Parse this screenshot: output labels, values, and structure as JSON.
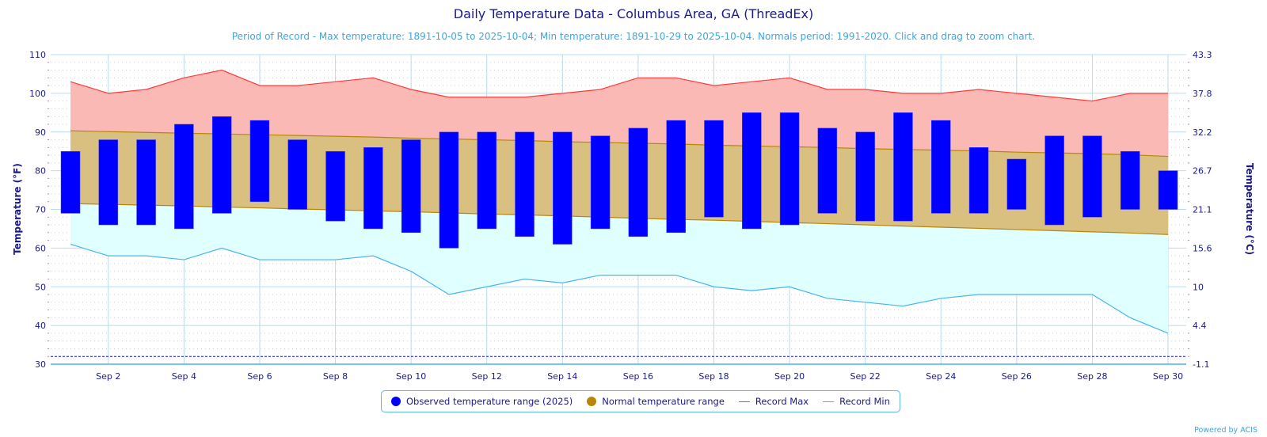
{
  "header": {
    "title": "Daily Temperature Data - Columbus Area, GA (ThreadEx)",
    "subtitle": "Period of Record - Max temperature: 1891-10-05 to 2025-10-04; Min temperature: 1891-10-29 to 2025-10-04. Normals period: 1991-2020. Click and drag to zoom chart."
  },
  "legend": {
    "items": [
      {
        "label": "Observed temperature range (2025)",
        "shape": "dot",
        "color": "#0000ff"
      },
      {
        "label": "Normal temperature range",
        "shape": "dot",
        "color": "#b8860b"
      },
      {
        "label": "Record Max",
        "shape": "line",
        "color": "#ff3b3b"
      },
      {
        "label": "Record Min",
        "shape": "line",
        "color": "#4ab4ee"
      }
    ]
  },
  "credit": "Powered by ACIS",
  "colors": {
    "observed": "#0000ff",
    "normal_fill": "#d9bf80",
    "normal_line": "#b8860b",
    "record_max_line": "#ff3b3b",
    "record_max_fill": "#fbb9b5",
    "record_min_line": "#4ab4ee",
    "record_min_fill": "#e0ffff",
    "freezing_line": "#1a1acc",
    "axis_text": "#1a1a8c",
    "grid": "#b8dcef"
  },
  "chart_data": {
    "type": "bar",
    "title": "Daily Temperature Data - Columbus Area, GA (ThreadEx)",
    "xlabel": "",
    "ylabel": "Temperature (°F)",
    "ylabel_right": "Temperature (°C)",
    "ylim": [
      30,
      110
    ],
    "yticks": [
      30,
      40,
      50,
      60,
      70,
      80,
      90,
      100,
      110
    ],
    "yticks_right": [
      "-1.1",
      "4.4",
      "10",
      "15.6",
      "21.1",
      "26.7",
      "32.2",
      "37.8",
      "43.3"
    ],
    "freezing_line": 32,
    "grid": true,
    "legend_position": "bottom-center",
    "days": [
      1,
      2,
      3,
      4,
      5,
      6,
      7,
      8,
      9,
      10,
      11,
      12,
      13,
      14,
      15,
      16,
      17,
      18,
      19,
      20,
      21,
      22,
      23,
      24,
      25,
      26,
      27,
      28,
      29,
      30
    ],
    "xtick_labels": [
      "Sep 2",
      "Sep 4",
      "Sep 6",
      "Sep 8",
      "Sep 10",
      "Sep 12",
      "Sep 14",
      "Sep 16",
      "Sep 18",
      "Sep 20",
      "Sep 22",
      "Sep 24",
      "Sep 26",
      "Sep 28",
      "Sep 30"
    ],
    "xtick_days": [
      2,
      4,
      6,
      8,
      10,
      12,
      14,
      16,
      18,
      20,
      22,
      24,
      26,
      28,
      30
    ],
    "series": [
      {
        "name": "Observed temperature range (2025) - max",
        "values": [
          85,
          88,
          88,
          92,
          94,
          93,
          88,
          85,
          86,
          88,
          90,
          90,
          90,
          90,
          89,
          91,
          93,
          93,
          95,
          95,
          91,
          90,
          95,
          93,
          86,
          83,
          89,
          89,
          85,
          80
        ]
      },
      {
        "name": "Observed temperature range (2025) - min",
        "values": [
          69,
          66,
          66,
          65,
          69,
          72,
          70,
          67,
          65,
          64,
          60,
          65,
          63,
          61,
          65,
          63,
          64,
          68,
          65,
          66,
          69,
          67,
          67,
          69,
          69,
          70,
          66,
          68,
          70,
          70
        ]
      },
      {
        "name": "Normal max",
        "values": [
          90.3,
          90.1,
          89.9,
          89.7,
          89.5,
          89.3,
          89.1,
          88.9,
          88.7,
          88.4,
          88.2,
          88.0,
          87.8,
          87.5,
          87.3,
          87.1,
          86.9,
          86.6,
          86.4,
          86.2,
          86.0,
          85.7,
          85.5,
          85.3,
          85.1,
          84.8,
          84.6,
          84.4,
          84.1,
          83.7
        ]
      },
      {
        "name": "Normal min",
        "values": [
          71.5,
          71.3,
          71.1,
          70.9,
          70.6,
          70.4,
          70.1,
          69.9,
          69.6,
          69.4,
          69.1,
          68.8,
          68.6,
          68.3,
          68.0,
          67.7,
          67.4,
          67.2,
          66.9,
          66.6,
          66.3,
          66.0,
          65.7,
          65.4,
          65.1,
          64.8,
          64.5,
          64.2,
          63.9,
          63.5
        ]
      },
      {
        "name": "Record Max",
        "values": [
          103,
          100,
          101,
          104,
          106,
          102,
          102,
          103,
          104,
          101,
          99,
          99,
          99,
          100,
          101,
          104,
          104,
          102,
          103,
          104,
          101,
          101,
          100,
          100,
          101,
          100,
          99,
          98,
          100,
          100
        ]
      },
      {
        "name": "Record Min",
        "values": [
          61,
          58,
          58,
          57,
          60,
          57,
          57,
          57,
          58,
          54,
          48,
          50,
          52,
          51,
          53,
          53,
          53,
          50,
          49,
          50,
          47,
          46,
          45,
          47,
          48,
          48,
          48,
          48,
          42,
          38
        ]
      }
    ]
  }
}
